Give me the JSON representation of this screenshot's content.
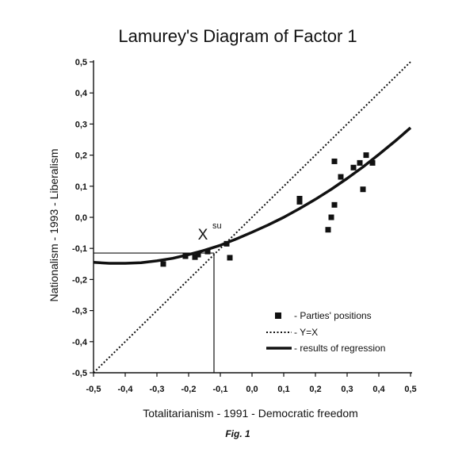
{
  "chart_data": {
    "type": "scatter",
    "title": "Lamurey's Diagram of Factor 1",
    "xlabel": "Totalitarianism - 1991 - Democratic freedom",
    "ylabel": "Nationalism - 1993 - Liberalism",
    "caption": "Fig. 1",
    "xlim": [
      -0.5,
      0.5
    ],
    "ylim": [
      -0.5,
      0.5
    ],
    "xticks": [
      "-0,5",
      "-0,4",
      "-0,3",
      "-0,2",
      "-0,1",
      "0,0",
      "0,1",
      "0,2",
      "0,3",
      "0,4",
      "0,5"
    ],
    "yticks": [
      "0,5",
      "0,4",
      "0,3",
      "0,2",
      "0,1",
      "0,0",
      "-0,1",
      "-0,2",
      "-0,3",
      "-0,4",
      "-0,5"
    ],
    "grid": false,
    "legend_position": "bottom-right",
    "series": [
      {
        "name": "- Parties' positions",
        "kind": "markers",
        "points": [
          {
            "x": -0.28,
            "y": -0.15
          },
          {
            "x": -0.21,
            "y": -0.125
          },
          {
            "x": -0.18,
            "y": -0.128
          },
          {
            "x": -0.17,
            "y": -0.12
          },
          {
            "x": -0.14,
            "y": -0.11
          },
          {
            "x": -0.08,
            "y": -0.085
          },
          {
            "x": -0.07,
            "y": -0.13
          },
          {
            "x": 0.15,
            "y": 0.06
          },
          {
            "x": 0.15,
            "y": 0.05
          },
          {
            "x": 0.24,
            "y": -0.04
          },
          {
            "x": 0.25,
            "y": 0.0
          },
          {
            "x": 0.26,
            "y": 0.04
          },
          {
            "x": 0.26,
            "y": 0.18
          },
          {
            "x": 0.28,
            "y": 0.13
          },
          {
            "x": 0.32,
            "y": 0.16
          },
          {
            "x": 0.34,
            "y": 0.175
          },
          {
            "x": 0.35,
            "y": 0.09
          },
          {
            "x": 0.36,
            "y": 0.2
          },
          {
            "x": 0.38,
            "y": 0.175
          }
        ]
      },
      {
        "name": "- Y=X",
        "kind": "dotted-line",
        "x": [
          -0.5,
          0.5
        ],
        "y": [
          -0.5,
          0.5
        ]
      },
      {
        "name": "- results of regression",
        "kind": "thick-curve",
        "x": [
          -0.5,
          -0.45,
          -0.4,
          -0.35,
          -0.3,
          -0.25,
          -0.2,
          -0.15,
          -0.1,
          -0.05,
          0.0,
          0.05,
          0.1,
          0.15,
          0.2,
          0.25,
          0.3,
          0.35,
          0.4,
          0.45,
          0.5
        ],
        "y": [
          -0.145,
          -0.148,
          -0.148,
          -0.146,
          -0.14,
          -0.132,
          -0.12,
          -0.106,
          -0.09,
          -0.07,
          -0.048,
          -0.025,
          0.0,
          0.028,
          0.058,
          0.09,
          0.125,
          0.162,
          0.202,
          0.244,
          0.288
        ]
      }
    ],
    "annotation": {
      "main": "X",
      "sup": "su",
      "x": -0.12,
      "y": -0.115
    }
  }
}
